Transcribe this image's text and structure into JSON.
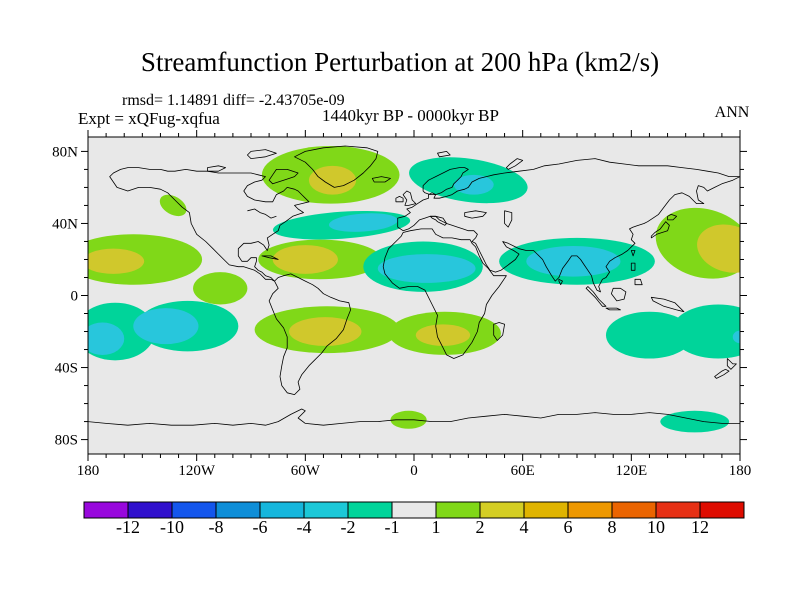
{
  "header": {
    "title": "Streamfunction Perturbation at 200 hPa (km2/s)",
    "stats": {
      "rmsd": "1.14891",
      "diff": "-2.43705e-09",
      "text": "rmsd= 1.14891 diff= -2.43705e-09"
    },
    "experiment": "Expt = xQFug-xqfua",
    "period": "1440kyr BP - 0000kyr BP",
    "season": "ANN"
  },
  "chart_data": {
    "type": "filled-contour-map",
    "projection": "equirectangular",
    "units": "km2/s",
    "lon_range": [
      -180,
      180
    ],
    "lat_range": [
      -88,
      88
    ],
    "minor_tick_deg": 10,
    "x_ticks": [
      {
        "label": "180",
        "lon": -180
      },
      {
        "label": "120W",
        "lon": -120
      },
      {
        "label": "60W",
        "lon": -60
      },
      {
        "label": "0",
        "lon": 0
      },
      {
        "label": "60E",
        "lon": 60
      },
      {
        "label": "120E",
        "lon": 120
      },
      {
        "label": "180",
        "lon": 180
      }
    ],
    "y_ticks": [
      {
        "label": "80N",
        "lat": 80
      },
      {
        "label": "40N",
        "lat": 40
      },
      {
        "label": "0",
        "lat": 0
      },
      {
        "label": "40S",
        "lat": -40
      },
      {
        "label": "80S",
        "lat": -80
      }
    ],
    "palette": {
      "background": "#E8E8E8",
      "yellowgreen": "#80D818",
      "yellow": "#D0C82C",
      "turquoise": "#00D49A",
      "cyan": "#28C6DC"
    },
    "colorbar": {
      "boundaries": [
        -12,
        -10,
        -8,
        -6,
        -4,
        -2,
        -1,
        1,
        2,
        4,
        6,
        8,
        10,
        12
      ],
      "labels": [
        "-12",
        "-10",
        "-8",
        "-6",
        "-4",
        "-2",
        "-1",
        "1",
        "2",
        "4",
        "6",
        "8",
        "10",
        "12"
      ],
      "colors": [
        "#9808DC",
        "#3010CC",
        "#1456EC",
        "#0E8ED8",
        "#16B6DC",
        "#1CC8D8",
        "#00D49A",
        "#E8E8E8",
        "#80D818",
        "#D4CE24",
        "#E0B400",
        "#EE9800",
        "#EA6400",
        "#E63014",
        "#DE0C00"
      ],
      "background_band_note": "gray band covers values -1 to 1"
    },
    "contours": [
      {
        "name": "greenland",
        "value_range": "1 to 2",
        "color": "yellowgreen",
        "lon": -46,
        "lat": 67,
        "rx": 38,
        "ry": 16,
        "rot": 0
      },
      {
        "name": "greenland-core",
        "value_range": "2 to 4",
        "color": "yellow",
        "lon": -45,
        "lat": 64,
        "rx": 13,
        "ry": 8,
        "rot": 0
      },
      {
        "name": "bc-coast",
        "value_range": "1 to 2",
        "color": "yellowgreen",
        "lon": -133,
        "lat": 50,
        "rx": 8,
        "ry": 5,
        "rot": 30
      },
      {
        "name": "ne-pacific",
        "value_range": "1 to 2",
        "color": "yellowgreen",
        "lon": -155,
        "lat": 20,
        "rx": 38,
        "ry": 14,
        "rot": 0
      },
      {
        "name": "ne-pacific-core",
        "value_range": "2 to 4",
        "color": "yellow",
        "lon": -166,
        "lat": 19,
        "rx": 17,
        "ry": 7,
        "rot": 0
      },
      {
        "name": "caribbean-atlantic",
        "value_range": "1 to 2",
        "color": "yellowgreen",
        "lon": -52,
        "lat": 20,
        "rx": 34,
        "ry": 11,
        "rot": 0
      },
      {
        "name": "caribbean-core",
        "value_range": "2 to 4",
        "color": "yellow",
        "lon": -60,
        "lat": 20,
        "rx": 18,
        "ry": 8,
        "rot": 0
      },
      {
        "name": "cam-pacific",
        "value_range": "1 to 2",
        "color": "yellowgreen",
        "lon": -107,
        "lat": 4,
        "rx": 15,
        "ry": 9,
        "rot": 0
      },
      {
        "name": "nw-pacific",
        "value_range": "1 to 2",
        "color": "yellowgreen",
        "lon": 160,
        "lat": 29,
        "rx": 27,
        "ry": 19,
        "rot": 15
      },
      {
        "name": "nw-pacific-core",
        "value_range": "2 to 4",
        "color": "yellow",
        "lon": 174,
        "lat": 26,
        "rx": 18,
        "ry": 13,
        "rot": 15
      },
      {
        "name": "s-america",
        "value_range": "1 to 2",
        "color": "yellowgreen",
        "lon": -48,
        "lat": -19,
        "rx": 40,
        "ry": 13,
        "rot": 0
      },
      {
        "name": "s-america-core",
        "value_range": "2 to 4",
        "color": "yellow",
        "lon": -49,
        "lat": -20,
        "rx": 20,
        "ry": 8,
        "rot": 0
      },
      {
        "name": "s-africa",
        "value_range": "1 to 2",
        "color": "yellowgreen",
        "lon": 17,
        "lat": -21,
        "rx": 31,
        "ry": 12,
        "rot": 0
      },
      {
        "name": "s-africa-core",
        "value_range": "2 to 4",
        "color": "yellow",
        "lon": 16,
        "lat": -22,
        "rx": 15,
        "ry": 6,
        "rot": 0
      },
      {
        "name": "antarctic-greenwich",
        "value_range": "1 to 2",
        "color": "yellowgreen",
        "lon": -3,
        "lat": -69,
        "rx": 10,
        "ry": 5,
        "rot": 0
      },
      {
        "name": "n-atlantic",
        "value_range": "-2 to -1",
        "color": "turquoise",
        "lon": -40,
        "lat": 39,
        "rx": 38,
        "ry": 7.5,
        "rot": -4
      },
      {
        "name": "n-atlantic-core",
        "value_range": "-4 to -2",
        "color": "cyan",
        "lon": -28,
        "lat": 40.5,
        "rx": 19,
        "ry": 5,
        "rot": -4
      },
      {
        "name": "scandinavia",
        "value_range": "-2 to -1",
        "color": "turquoise",
        "lon": 30,
        "lat": 64,
        "rx": 33,
        "ry": 12,
        "rot": 8
      },
      {
        "name": "scandinavia-core",
        "value_range": "-4 to -2",
        "color": "cyan",
        "lon": 33,
        "lat": 61.5,
        "rx": 11,
        "ry": 5.5,
        "rot": 0
      },
      {
        "name": "n-africa",
        "value_range": "-2 to -1",
        "color": "turquoise",
        "lon": 5,
        "lat": 16,
        "rx": 33,
        "ry": 14,
        "rot": 0
      },
      {
        "name": "n-africa-core",
        "value_range": "-4 to -2",
        "color": "cyan",
        "lon": 7,
        "lat": 15,
        "rx": 27,
        "ry": 8,
        "rot": 0
      },
      {
        "name": "s-asia",
        "value_range": "-2 to -1",
        "color": "turquoise",
        "lon": 90,
        "lat": 19,
        "rx": 43,
        "ry": 13,
        "rot": 0
      },
      {
        "name": "s-asia-core",
        "value_range": "-4 to -2",
        "color": "cyan",
        "lon": 88,
        "lat": 19,
        "rx": 26,
        "ry": 8.5,
        "rot": 0
      },
      {
        "name": "s-pacific-west",
        "value_range": "-2 to -1",
        "color": "turquoise",
        "lon": -165,
        "lat": -20,
        "rx": 22,
        "ry": 16,
        "rot": 0
      },
      {
        "name": "s-pacific-east",
        "value_range": "-2 to -1",
        "color": "turquoise",
        "lon": -125,
        "lat": -17,
        "rx": 28,
        "ry": 14,
        "rot": 0
      },
      {
        "name": "s-pacific-core-west",
        "value_range": "-4 to -2",
        "color": "cyan",
        "lon": -172,
        "lat": -24,
        "rx": 12,
        "ry": 9,
        "rot": 0
      },
      {
        "name": "s-pacific-core-east",
        "value_range": "-4 to -2",
        "color": "cyan",
        "lon": -137,
        "lat": -17,
        "rx": 18,
        "ry": 10,
        "rot": 0
      },
      {
        "name": "australia-west",
        "value_range": "-2 to -1",
        "color": "turquoise",
        "lon": 130,
        "lat": -22,
        "rx": 24,
        "ry": 13,
        "rot": 0
      },
      {
        "name": "australia-east",
        "value_range": "-2 to -1",
        "color": "turquoise",
        "lon": 168,
        "lat": -20,
        "rx": 26,
        "ry": 15,
        "rot": 0
      },
      {
        "name": "australia-core",
        "value_range": "-4 to -2",
        "color": "cyan",
        "lon": 180,
        "lat": -23,
        "rx": 4,
        "ry": 3.5,
        "rot": 0
      },
      {
        "name": "antarctic-ross",
        "value_range": "-2 to -1",
        "color": "turquoise",
        "lon": 155,
        "lat": -70,
        "rx": 19,
        "ry": 6,
        "rot": 0
      }
    ]
  }
}
